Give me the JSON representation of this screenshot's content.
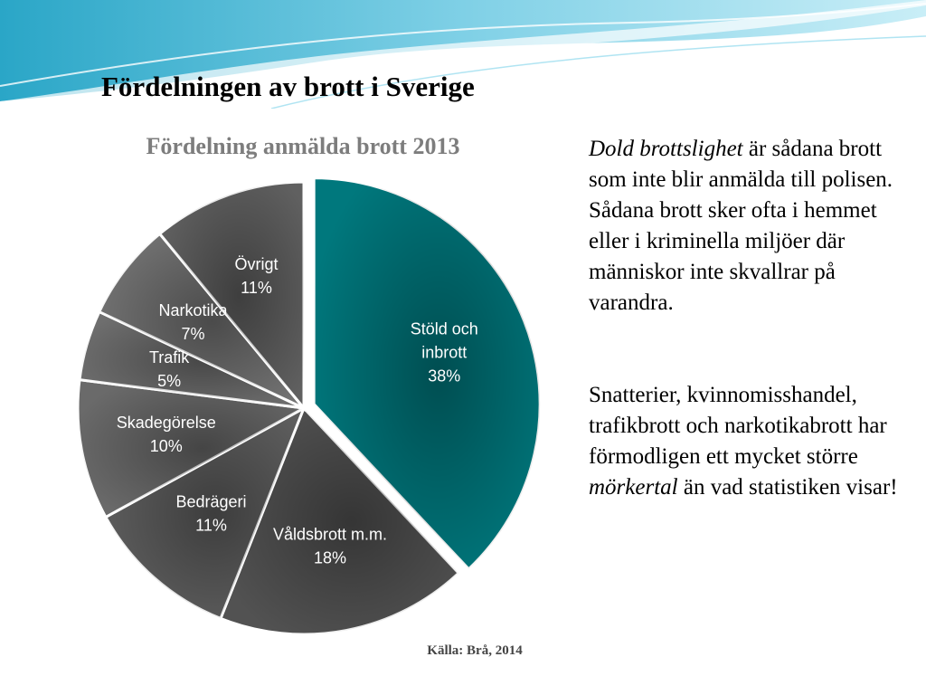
{
  "slide": {
    "title": "Fördelningen av brott i Sverige",
    "paragraph1": {
      "italic_lead": "Dold brottslighet",
      "rest": " är sådana brott som inte blir anmälda till polisen. Sådana brott sker ofta i hemmet eller i kriminella miljöer där människor inte skvallrar på varandra."
    },
    "paragraph2": {
      "before": "Snatterier, kvinnomisshandel, trafikbrott och narkotikabrott har förmodligen ett mycket större ",
      "italic": "mörkertal",
      "after": " än  vad statistiken visar!"
    }
  },
  "chart_data": {
    "type": "pie",
    "title": "Fördelning anmälda brott 2013",
    "source": "Källa: Brå, 2014",
    "unit": "%",
    "start": "12 o'clock, clockwise",
    "slices": [
      {
        "name": "Stöld och inbrott",
        "lines": [
          "Stöld och",
          "inbrott"
        ],
        "value": 38,
        "label": "38%",
        "color": "#00787d",
        "exploded": true
      },
      {
        "name": "Våldsbrott m.m.",
        "lines": [
          "Våldsbrott m.m."
        ],
        "value": 18,
        "label": "18%",
        "color": "#525252"
      },
      {
        "name": "Bedrägeri",
        "lines": [
          "Bedrägeri"
        ],
        "value": 11,
        "label": "11%",
        "color": "#5e5e5e"
      },
      {
        "name": "Skadegörelse",
        "lines": [
          "Skadegörelse"
        ],
        "value": 10,
        "label": "10%",
        "color": "#6a6a6a"
      },
      {
        "name": "Trafik",
        "lines": [
          "Trafik"
        ],
        "value": 5,
        "label": "5%",
        "color": "#6e6e6e"
      },
      {
        "name": "Narkotika",
        "lines": [
          "Narkotika"
        ],
        "value": 7,
        "label": "7%",
        "color": "#737373"
      },
      {
        "name": "Övrigt",
        "lines": [
          "Övrigt"
        ],
        "value": 11,
        "label": "11%",
        "color": "#606060"
      }
    ],
    "legend": "none (labels inside slices)"
  }
}
